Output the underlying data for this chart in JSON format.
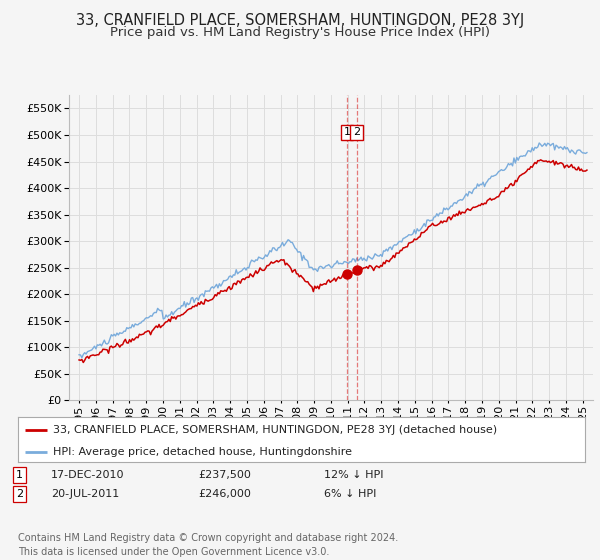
{
  "title": "33, CRANFIELD PLACE, SOMERSHAM, HUNTINGDON, PE28 3YJ",
  "subtitle": "Price paid vs. HM Land Registry's House Price Index (HPI)",
  "ylim": [
    0,
    575000
  ],
  "yticks": [
    0,
    50000,
    100000,
    150000,
    200000,
    250000,
    300000,
    350000,
    400000,
    450000,
    500000,
    550000
  ],
  "legend_line1": "33, CRANFIELD PLACE, SOMERSHAM, HUNTINGDON, PE28 3YJ (detached house)",
  "legend_line2": "HPI: Average price, detached house, Huntingdonshire",
  "annotation1_date": "17-DEC-2010",
  "annotation1_price": "£237,500",
  "annotation1_pct": "12% ↓ HPI",
  "annotation2_date": "20-JUL-2011",
  "annotation2_price": "£246,000",
  "annotation2_pct": "6% ↓ HPI",
  "footer": "Contains HM Land Registry data © Crown copyright and database right 2024.\nThis data is licensed under the Open Government Licence v3.0.",
  "red_color": "#cc0000",
  "blue_color": "#7aacdc",
  "vline_color": "#dd4444",
  "grid_color": "#dddddd",
  "background_color": "#f5f5f5",
  "plot_bg": "#f5f5f5"
}
